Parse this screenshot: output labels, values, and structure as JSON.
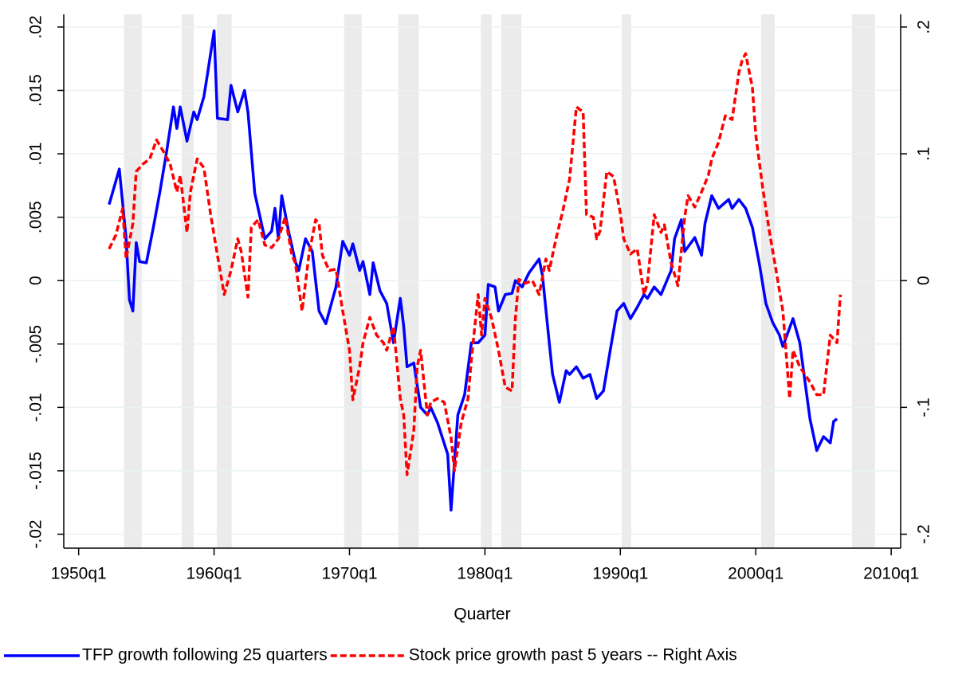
{
  "chart_data": {
    "type": "line",
    "x_label": "Quarter",
    "xlim": [
      1948.9,
      2010.7
    ],
    "xticks": [
      {
        "value": 1950,
        "label": "1950q1"
      },
      {
        "value": 1960,
        "label": "1960q1"
      },
      {
        "value": 1970,
        "label": "1970q1"
      },
      {
        "value": 1980,
        "label": "1980q1"
      },
      {
        "value": 1990,
        "label": "1990q1"
      },
      {
        "value": 2000,
        "label": "2000q1"
      },
      {
        "value": 2010,
        "label": "2010q1"
      }
    ],
    "ylim": [
      -0.0211,
      0.021
    ],
    "yticks": [
      {
        "value": 0.02,
        "label": ".02"
      },
      {
        "value": 0.015,
        "label": ".015"
      },
      {
        "value": 0.01,
        "label": ".01"
      },
      {
        "value": 0.005,
        "label": ".005"
      },
      0,
      {
        "value": -0.005,
        "label": "-.005"
      },
      {
        "value": -0.01,
        "label": "-.01"
      },
      {
        "value": -0.015,
        "label": "-.015"
      },
      {
        "value": -0.02,
        "label": "-.02"
      }
    ],
    "y2lim": [
      -0.211,
      0.21
    ],
    "y2ticks": [
      {
        "value": 0.2,
        "label": ".2"
      },
      {
        "value": 0.1,
        "label": ".1"
      },
      0,
      {
        "value": -0.1,
        "label": "-.1"
      },
      {
        "value": -0.2,
        "label": "-.2"
      }
    ],
    "grid": true,
    "legend": "bottom",
    "shaded": [
      [
        1953.35,
        1954.65
      ],
      [
        1957.6,
        1958.5
      ],
      [
        1960.2,
        1961.3
      ],
      [
        1969.6,
        1970.9
      ],
      [
        1973.6,
        1975.1
      ],
      [
        1979.7,
        1980.5
      ],
      [
        1981.2,
        1982.7
      ],
      [
        1990.1,
        1990.8
      ],
      [
        2000.4,
        2001.4
      ],
      [
        2007.1,
        2008.8
      ]
    ],
    "shaded_color": "#ebebeb",
    "series": [
      {
        "name": "TFP growth following 25 quarters",
        "color": "#0000ff",
        "dash": false,
        "x": [
          1952.25,
          1953,
          1953.5,
          1953.75,
          1954,
          1954.25,
          1954.5,
          1955,
          1955.5,
          1956,
          1956.5,
          1957,
          1957.25,
          1957.5,
          1958,
          1958.5,
          1958.75,
          1959.25,
          1959.5,
          1960,
          1960.25,
          1961,
          1961.25,
          1961.75,
          1962.25,
          1962.5,
          1963,
          1963.75,
          1964.25,
          1964.5,
          1964.75,
          1965,
          1965.5,
          1966,
          1966.25,
          1966.75,
          1967.25,
          1967.75,
          1968.25,
          1969,
          1969.5,
          1970,
          1970.25,
          1970.75,
          1971,
          1971.5,
          1971.75,
          1972.25,
          1972.75,
          1973.25,
          1973.75,
          1974,
          1974.25,
          1974.75,
          1975.25,
          1975.75,
          1976,
          1976.5,
          1977.25,
          1977.5,
          1978,
          1978.5,
          1979,
          1979.5,
          1980,
          1980.25,
          1980.75,
          1981,
          1981.5,
          1982,
          1982.25,
          1982.75,
          1983.25,
          1984,
          1984.25,
          1984.75,
          1985,
          1985.5,
          1986,
          1986.25,
          1986.75,
          1987.25,
          1987.75,
          1988.25,
          1988.75,
          1989.25,
          1989.75,
          1990.25,
          1990.75,
          1991.25,
          1991.75,
          1992,
          1992.5,
          1993,
          1993.75,
          1994,
          1994.5,
          1994.75,
          1995.5,
          1996,
          1996.25,
          1996.75,
          1997.25,
          1998,
          1998.25,
          1998.75,
          1999.25,
          1999.75,
          2000.25,
          2000.75,
          2001.25,
          2001.75,
          2002,
          2002.75,
          2003.25,
          2004,
          2004.5,
          2005,
          2005.5,
          2005.75,
          2006
        ],
        "values": [
          0.006,
          0.0088,
          0.0033,
          -0.0015,
          -0.0024,
          0.003,
          0.0015,
          0.0014,
          0.0041,
          0.007,
          0.0102,
          0.0137,
          0.012,
          0.0137,
          0.011,
          0.0133,
          0.0127,
          0.0145,
          0.0162,
          0.0197,
          0.0128,
          0.0127,
          0.0154,
          0.0133,
          0.015,
          0.0133,
          0.0069,
          0.0033,
          0.0039,
          0.0057,
          0.0033,
          0.0067,
          0.0039,
          0.0015,
          0.0008,
          0.0033,
          0.0023,
          -0.0024,
          -0.0034,
          -0.0005,
          0.0031,
          0.002,
          0.0029,
          0.0008,
          0.0015,
          -0.0011,
          0.0014,
          -0.0008,
          -0.0018,
          -0.0049,
          -0.0014,
          -0.0036,
          -0.0068,
          -0.0065,
          -0.01,
          -0.0106,
          -0.01,
          -0.0112,
          -0.0137,
          -0.0181,
          -0.0106,
          -0.009,
          -0.0049,
          -0.0049,
          -0.0043,
          -0.0003,
          -0.0005,
          -0.0024,
          -0.0011,
          -0.001,
          0,
          -0.0005,
          0.0006,
          0.0017,
          0.0004,
          -0.0049,
          -0.0074,
          -0.0096,
          -0.0071,
          -0.0074,
          -0.0068,
          -0.0077,
          -0.0074,
          -0.0093,
          -0.0087,
          -0.0055,
          -0.0024,
          -0.0018,
          -0.003,
          -0.0021,
          -0.0011,
          -0.0014,
          -0.0005,
          -0.0011,
          0.0008,
          0.0033,
          0.0048,
          0.0023,
          0.0034,
          0.002,
          0.0045,
          0.0067,
          0.0057,
          0.0064,
          0.0057,
          0.0064,
          0.0057,
          0.0042,
          0.0014,
          -0.0018,
          -0.0033,
          -0.0043,
          -0.0052,
          -0.003,
          -0.0049,
          -0.0109,
          -0.0134,
          -0.0123,
          -0.0128,
          -0.0111,
          -0.0109
        ]
      },
      {
        "name": "Stock price growth past 5 years -- Right Axis",
        "color": "#ff0000",
        "dash": true,
        "axis": "y2",
        "x": [
          1952.25,
          1952.75,
          1953.25,
          1953.5,
          1954,
          1954.25,
          1954.75,
          1955.25,
          1955.75,
          1956.25,
          1956.75,
          1957.25,
          1957.5,
          1958,
          1958.25,
          1958.75,
          1959.25,
          1959.75,
          1960.25,
          1960.75,
          1961.25,
          1961.75,
          1962,
          1962.5,
          1962.75,
          1963.25,
          1963.75,
          1964.25,
          1964.75,
          1965.25,
          1965.75,
          1966,
          1966.5,
          1967,
          1967.5,
          1967.75,
          1968,
          1968.5,
          1969,
          1969.5,
          1970,
          1970.25,
          1970.75,
          1971,
          1971.5,
          1972,
          1972.5,
          1972.75,
          1973.25,
          1973.75,
          1974,
          1974.25,
          1974.75,
          1975,
          1975.25,
          1975.75,
          1976,
          1976.5,
          1977,
          1977.5,
          1977.75,
          1978.25,
          1978.75,
          1979,
          1979.5,
          1979.75,
          1980,
          1980.5,
          1981,
          1981.5,
          1982,
          1982.25,
          1982.5,
          1983,
          1983.5,
          1984,
          1984.5,
          1984.75,
          1985.25,
          1985.75,
          1986.25,
          1986.75,
          1987.25,
          1987.5,
          1988,
          1988.25,
          1988.5,
          1989,
          1989.5,
          1990,
          1990.25,
          1990.75,
          1991.25,
          1991.75,
          1992,
          1992.5,
          1993,
          1993.25,
          1993.75,
          1994.25,
          1994.75,
          1995,
          1995.5,
          1996,
          1996.5,
          1996.75,
          1997.25,
          1997.75,
          1998.25,
          1998.75,
          1999,
          1999.25,
          1999.75,
          2000,
          2000.5,
          2001,
          2001.5,
          2002,
          2002.5,
          2002.75,
          2003.25,
          2004,
          2004.5,
          2005,
          2005.5,
          2006,
          2006.25
        ],
        "values": [
          0.025,
          0.036,
          0.057,
          0.017,
          0.045,
          0.086,
          0.092,
          0.096,
          0.111,
          0.102,
          0.092,
          0.07,
          0.083,
          0.038,
          0.07,
          0.096,
          0.089,
          0.052,
          0.02,
          -0.011,
          0.008,
          0.033,
          0.023,
          -0.013,
          0.042,
          0.048,
          0.028,
          0.026,
          0.033,
          0.05,
          0.02,
          0.014,
          -0.024,
          0.02,
          0.048,
          0.045,
          0.02,
          0.008,
          0.009,
          -0.024,
          -0.055,
          -0.094,
          -0.068,
          -0.049,
          -0.029,
          -0.043,
          -0.049,
          -0.055,
          -0.036,
          -0.093,
          -0.106,
          -0.153,
          -0.118,
          -0.068,
          -0.055,
          -0.106,
          -0.096,
          -0.093,
          -0.096,
          -0.124,
          -0.15,
          -0.112,
          -0.093,
          -0.062,
          -0.011,
          -0.043,
          -0.014,
          -0.03,
          -0.055,
          -0.084,
          -0.087,
          -0.03,
          0.001,
          -0.002,
          0,
          -0.011,
          0.017,
          0.008,
          0.033,
          0.055,
          0.08,
          0.137,
          0.133,
          0.052,
          0.05,
          0.033,
          0.039,
          0.086,
          0.082,
          0.053,
          0.033,
          0.021,
          0.025,
          -0.011,
          -0.002,
          0.052,
          0.038,
          0.044,
          0.014,
          -0.004,
          0.05,
          0.067,
          0.058,
          0.07,
          0.083,
          0.096,
          0.109,
          0.13,
          0.127,
          0.164,
          0.174,
          0.179,
          0.152,
          0.115,
          0.074,
          0.039,
          0.008,
          -0.024,
          -0.093,
          -0.055,
          -0.068,
          -0.08,
          -0.09,
          -0.09,
          -0.043,
          -0.049,
          -0.011
        ]
      }
    ]
  }
}
